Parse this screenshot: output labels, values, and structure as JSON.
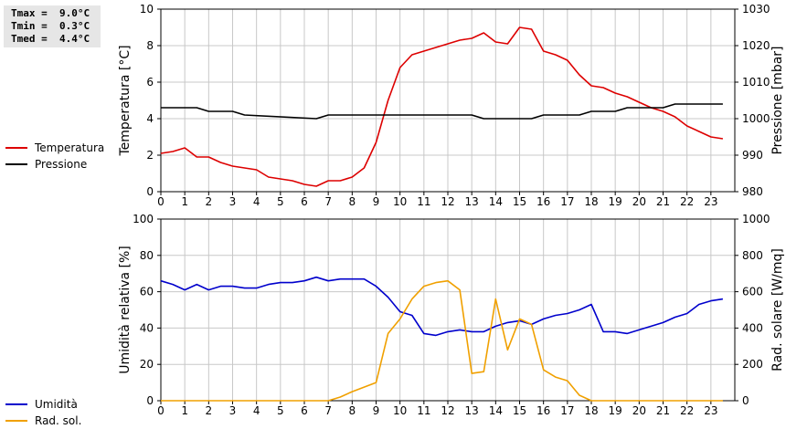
{
  "stats": {
    "tmax": "Tmax =  9.0°C",
    "tmin": "Tmin =  0.3°C",
    "tmed": "Tmed =  4.4°C"
  },
  "colors": {
    "temperature": "#dd0000",
    "pressure": "#000000",
    "humidity": "#0000cc",
    "solar": "#f0a000",
    "grid": "#c8c8c8"
  },
  "chart_data": [
    {
      "type": "line",
      "ylabel": "Temperatura [°C]",
      "y2label": "Pressione [mbar]",
      "ylim": [
        0,
        10
      ],
      "y2lim": [
        980,
        1030
      ],
      "yticks": [
        "0",
        "2",
        "4",
        "6",
        "8",
        "10"
      ],
      "y2ticks": [
        "980",
        "990",
        "1000",
        "1010",
        "1020",
        "1030"
      ],
      "xticks": [
        "0",
        "1",
        "2",
        "3",
        "4",
        "5",
        "6",
        "7",
        "8",
        "9",
        "10",
        "11",
        "12",
        "13",
        "14",
        "15",
        "16",
        "17",
        "18",
        "19",
        "20",
        "21",
        "22",
        "23"
      ],
      "grid": true,
      "series": [
        {
          "name": "Temperatura",
          "axis": "left",
          "x": [
            0,
            0.5,
            1,
            1.5,
            2,
            2.5,
            3,
            3.5,
            4,
            4.5,
            5,
            5.5,
            6,
            6.5,
            7,
            7.5,
            8,
            8.5,
            9,
            9.5,
            10,
            10.5,
            11,
            11.5,
            12,
            12.5,
            13,
            13.5,
            14,
            14.5,
            15,
            15.5,
            16,
            16.5,
            17,
            17.5,
            18,
            18.5,
            19,
            19.5,
            20,
            20.5,
            21,
            21.5,
            22,
            22.5,
            23,
            23.5
          ],
          "values": [
            2.1,
            2.2,
            2.4,
            1.9,
            1.9,
            1.6,
            1.4,
            1.3,
            1.2,
            0.8,
            0.7,
            0.6,
            0.4,
            0.3,
            0.6,
            0.6,
            0.8,
            1.3,
            2.7,
            5.0,
            6.8,
            7.5,
            7.7,
            7.9,
            8.1,
            8.3,
            8.4,
            8.7,
            8.2,
            8.1,
            9.0,
            8.9,
            7.7,
            7.5,
            7.2,
            6.4,
            5.8,
            5.7,
            5.4,
            5.2,
            4.9,
            4.6,
            4.4,
            4.1,
            3.6,
            3.3,
            3.0,
            2.9
          ]
        },
        {
          "name": "Pressione",
          "axis": "right",
          "x": [
            0,
            1.5,
            2,
            3,
            3.5,
            6.5,
            7,
            13,
            13.5,
            15.5,
            16,
            17.5,
            18,
            19,
            19.5,
            21,
            21.5,
            23.5
          ],
          "values": [
            1003,
            1003,
            1002,
            1002,
            1001,
            1000,
            1001,
            1001,
            1000,
            1000,
            1001,
            1001,
            1002,
            1002,
            1003,
            1003,
            1004,
            1004
          ]
        }
      ]
    },
    {
      "type": "line",
      "ylabel": "Umidità relativa [%]",
      "y2label": "Rad. solare [W/mq]",
      "ylim": [
        0,
        100
      ],
      "y2lim": [
        0,
        1000
      ],
      "yticks": [
        "0",
        "20",
        "40",
        "60",
        "80",
        "100"
      ],
      "y2ticks": [
        "0",
        "200",
        "400",
        "600",
        "800",
        "1000"
      ],
      "xticks": [
        "0",
        "1",
        "2",
        "3",
        "4",
        "5",
        "6",
        "7",
        "8",
        "9",
        "10",
        "11",
        "12",
        "13",
        "14",
        "15",
        "16",
        "17",
        "18",
        "19",
        "20",
        "21",
        "22",
        "23"
      ],
      "grid": true,
      "series": [
        {
          "name": "Umidità",
          "axis": "left",
          "x": [
            0,
            0.5,
            1,
            1.5,
            2,
            2.5,
            3,
            3.5,
            4,
            4.5,
            5,
            5.5,
            6,
            6.5,
            7,
            7.5,
            8,
            8.5,
            9,
            9.5,
            10,
            10.5,
            11,
            11.5,
            12,
            12.5,
            13,
            13.5,
            14,
            14.5,
            15,
            15.5,
            16,
            16.5,
            17,
            17.5,
            18,
            18.5,
            19,
            19.5,
            20,
            20.5,
            21,
            21.5,
            22,
            22.5,
            23,
            23.5
          ],
          "values": [
            66,
            64,
            61,
            64,
            61,
            63,
            63,
            62,
            62,
            64,
            65,
            65,
            66,
            68,
            66,
            67,
            67,
            67,
            63,
            57,
            49,
            47,
            37,
            36,
            38,
            39,
            38,
            38,
            41,
            43,
            44,
            42,
            45,
            47,
            48,
            50,
            53,
            38,
            38,
            37,
            39,
            41,
            43,
            46,
            48,
            53,
            55,
            56
          ]
        },
        {
          "name": "Rad. sol.",
          "axis": "right",
          "x": [
            0,
            7,
            7.5,
            8,
            8.5,
            9,
            9.5,
            10,
            10.5,
            11,
            11.5,
            12,
            12.5,
            13,
            13.5,
            14,
            14.5,
            15,
            15.5,
            16,
            16.5,
            17,
            17.5,
            18,
            18.5,
            23.5
          ],
          "values": [
            0,
            0,
            20,
            50,
            75,
            100,
            370,
            450,
            560,
            630,
            650,
            660,
            610,
            150,
            160,
            560,
            280,
            450,
            420,
            170,
            130,
            110,
            30,
            0,
            0,
            0
          ]
        }
      ]
    }
  ]
}
